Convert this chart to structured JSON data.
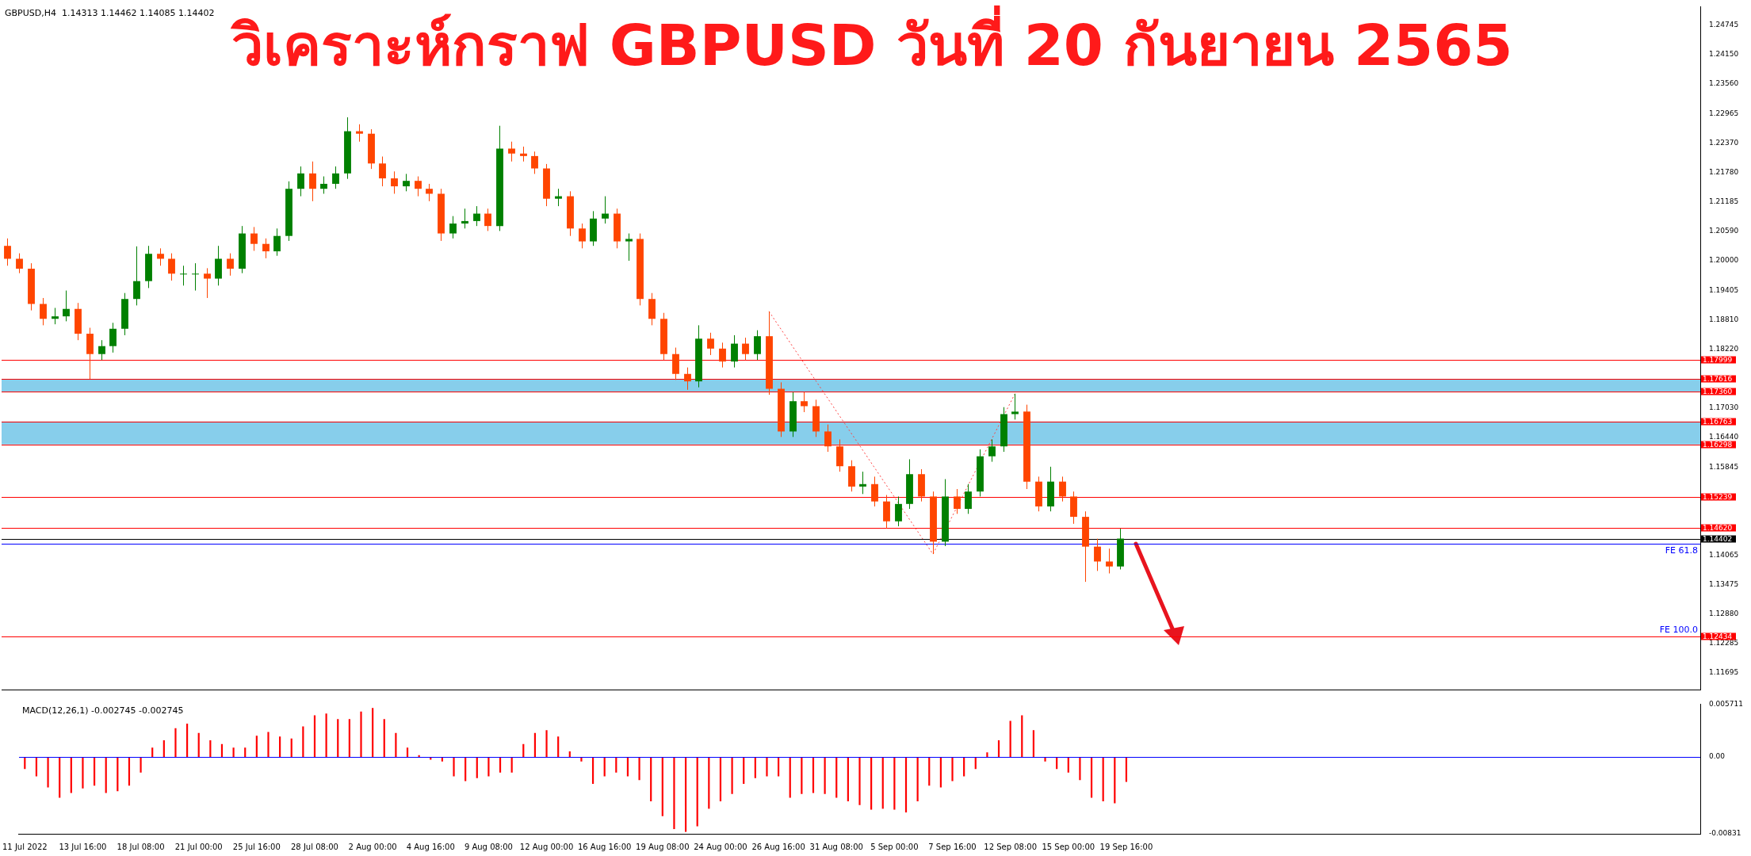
{
  "chart_data": [
    {
      "type": "candlestick",
      "title": "วิเคราะห์กราฟ GBPUSD วันที่ 20 กันยายน 2565",
      "annotations": [
        "GBPUSD,H4  1.14313 1.14462 1.14085 1.14402",
        {
          "text": "FE 100.0",
          "y": 1.12434
        }
      ],
      "categories": [
        null,
        null,
        null,
        null,
        null,
        null,
        null,
        null,
        null,
        null,
        null,
        null,
        null,
        null,
        null,
        null,
        null,
        null,
        null,
        null,
        null,
        null,
        null,
        null,
        null,
        null,
        null,
        null,
        null,
        null,
        null,
        null,
        null,
        null,
        null,
        null,
        null,
        null,
        null,
        null,
        null,
        null,
        null,
        null,
        null,
        null,
        null,
        null,
        null,
        null,
        null,
        null,
        null,
        null,
        null,
        null,
        null,
        null,
        null,
        null,
        null,
        null,
        null,
        null,
        null,
        null,
        null,
        null,
        null,
        null,
        null,
        null,
        null,
        null,
        null,
        null,
        null,
        null,
        null,
        null,
        null,
        null,
        null,
        null,
        null,
        null,
        null,
        null,
        null,
        null,
        null,
        null,
        null,
        null,
        null,
        null,
        null,
        null,
        null,
        null,
        null,
        null,
        null,
        null,
        null,
        null,
        null,
        null,
        null,
        null,
        null,
        null,
        null,
        null,
        null,
        null,
        null,
        null,
        null,
        null,
        null,
        null,
        null,
        null,
        null,
        null,
        null,
        null,
        null,
        null,
        null,
        null,
        null,
        null,
        null,
        null,
        null,
        null,
        null,
        null,
        null,
        null,
        null,
        null,
        null
      ],
      "ohlc": [
        [
          1.203,
          1.2045,
          1.199,
          1.2004
        ],
        [
          1.2004,
          1.2015,
          1.1975,
          1.1984
        ],
        [
          1.1984,
          1.1995,
          1.19,
          1.1913
        ],
        [
          1.1913,
          1.1925,
          1.187,
          1.1883
        ],
        [
          1.1883,
          1.1905,
          1.1872,
          1.1888
        ],
        [
          1.1888,
          1.194,
          1.1878,
          1.1903
        ],
        [
          1.1903,
          1.1915,
          1.184,
          1.1853
        ],
        [
          1.1853,
          1.1865,
          1.1762,
          1.1812
        ],
        [
          1.1812,
          1.184,
          1.18,
          1.1828
        ],
        [
          1.1828,
          1.1875,
          1.1815,
          1.1863
        ],
        [
          1.1863,
          1.1935,
          1.185,
          1.1923
        ],
        [
          1.1923,
          1.2029,
          1.191,
          1.1959
        ],
        [
          1.1959,
          1.203,
          1.1945,
          1.2014
        ],
        [
          1.2014,
          1.2025,
          1.199,
          1.2004
        ],
        [
          1.2004,
          1.2015,
          1.196,
          1.1974
        ],
        [
          1.1974,
          1.199,
          1.195,
          1.1974
        ],
        [
          1.1974,
          1.1995,
          1.194,
          1.1974
        ],
        [
          1.1974,
          1.1985,
          1.1925,
          1.1964
        ],
        [
          1.1964,
          1.203,
          1.195,
          1.2004
        ],
        [
          1.2004,
          1.2015,
          1.197,
          1.1984
        ],
        [
          1.1984,
          1.207,
          1.1975,
          1.2055
        ],
        [
          1.2055,
          1.2068,
          1.202,
          1.2034
        ],
        [
          1.2034,
          1.2045,
          1.2005,
          1.2019
        ],
        [
          1.2019,
          1.2065,
          1.201,
          1.205
        ],
        [
          1.205,
          1.216,
          1.204,
          1.2145
        ],
        [
          1.2145,
          1.219,
          1.213,
          1.2176
        ],
        [
          1.2176,
          1.22,
          1.212,
          1.2145
        ],
        [
          1.2145,
          1.217,
          1.2135,
          1.2155
        ],
        [
          1.2155,
          1.219,
          1.2145,
          1.2176
        ],
        [
          1.2176,
          1.2289,
          1.2165,
          1.2261
        ],
        [
          1.2261,
          1.2275,
          1.224,
          1.2256
        ],
        [
          1.2256,
          1.2265,
          1.2185,
          1.2196
        ],
        [
          1.2196,
          1.221,
          1.215,
          1.2166
        ],
        [
          1.2166,
          1.218,
          1.2135,
          1.215
        ],
        [
          1.215,
          1.2175,
          1.214,
          1.2161
        ],
        [
          1.2161,
          1.217,
          1.213,
          1.2145
        ],
        [
          1.2145,
          1.2155,
          1.212,
          1.2135
        ],
        [
          1.2135,
          1.2145,
          1.204,
          1.2055
        ],
        [
          1.2055,
          1.209,
          1.2045,
          1.2075
        ],
        [
          1.2075,
          1.2105,
          1.2065,
          1.208
        ],
        [
          1.208,
          1.211,
          1.207,
          1.2095
        ],
        [
          1.2095,
          1.2105,
          1.206,
          1.207
        ],
        [
          1.207,
          1.2272,
          1.206,
          1.2226
        ],
        [
          1.2226,
          1.224,
          1.22,
          1.2216
        ],
        [
          1.2216,
          1.223,
          1.22,
          1.2211
        ],
        [
          1.2211,
          1.222,
          1.2175,
          1.2186
        ],
        [
          1.2186,
          1.2195,
          1.211,
          1.2125
        ],
        [
          1.2125,
          1.2145,
          1.211,
          1.213
        ],
        [
          1.213,
          1.214,
          1.205,
          1.2065
        ],
        [
          1.2065,
          1.2075,
          1.2025,
          1.2039
        ],
        [
          1.2039,
          1.21,
          1.203,
          1.2085
        ],
        [
          1.2085,
          1.213,
          1.2075,
          1.2095
        ],
        [
          1.2095,
          1.2105,
          1.2025,
          1.2039
        ],
        [
          1.2039,
          1.2055,
          1.2,
          1.2044
        ],
        [
          1.2044,
          1.2055,
          1.191,
          1.1923
        ],
        [
          1.1923,
          1.1935,
          1.187,
          1.1883
        ],
        [
          1.1883,
          1.1895,
          1.18,
          1.1812
        ],
        [
          1.1812,
          1.1825,
          1.176,
          1.1772
        ],
        [
          1.1772,
          1.1785,
          1.174,
          1.1757
        ],
        [
          1.1757,
          1.187,
          1.1745,
          1.1843
        ],
        [
          1.1843,
          1.1855,
          1.181,
          1.1823
        ],
        [
          1.1823,
          1.1835,
          1.1785,
          1.1797
        ],
        [
          1.1797,
          1.185,
          1.1785,
          1.1833
        ],
        [
          1.1833,
          1.1845,
          1.18,
          1.1812
        ],
        [
          1.1812,
          1.186,
          1.18,
          1.1848
        ],
        [
          1.1848,
          1.1898,
          1.173,
          1.1742
        ],
        [
          1.1742,
          1.1755,
          1.1645,
          1.1656
        ],
        [
          1.1656,
          1.1735,
          1.1645,
          1.1717
        ],
        [
          1.1717,
          1.1735,
          1.1695,
          1.1707
        ],
        [
          1.1707,
          1.172,
          1.1645,
          1.1656
        ],
        [
          1.1656,
          1.167,
          1.1615,
          1.1626
        ],
        [
          1.1626,
          1.164,
          1.1575,
          1.1586
        ],
        [
          1.1586,
          1.1598,
          1.1535,
          1.1545
        ],
        [
          1.1545,
          1.1575,
          1.153,
          1.155
        ],
        [
          1.155,
          1.1565,
          1.1505,
          1.1515
        ],
        [
          1.1515,
          1.1528,
          1.146,
          1.1475
        ],
        [
          1.1475,
          1.1525,
          1.1465,
          1.151
        ],
        [
          1.151,
          1.16,
          1.15,
          1.157
        ],
        [
          1.157,
          1.158,
          1.1515,
          1.1525
        ],
        [
          1.1525,
          1.1535,
          1.1409,
          1.1434
        ],
        [
          1.1434,
          1.156,
          1.1425,
          1.1525
        ],
        [
          1.1525,
          1.154,
          1.149,
          1.15
        ],
        [
          1.15,
          1.155,
          1.149,
          1.1535
        ],
        [
          1.1535,
          1.162,
          1.1525,
          1.1606
        ],
        [
          1.1606,
          1.164,
          1.1595,
          1.1626
        ],
        [
          1.1626,
          1.1705,
          1.1615,
          1.1691
        ],
        [
          1.1691,
          1.1732,
          1.168,
          1.1696
        ],
        [
          1.1696,
          1.171,
          1.154,
          1.1555
        ],
        [
          1.1555,
          1.1565,
          1.1495,
          1.1505
        ],
        [
          1.1505,
          1.1585,
          1.1495,
          1.1555
        ],
        [
          1.1555,
          1.1565,
          1.1515,
          1.1525
        ],
        [
          1.1525,
          1.1535,
          1.147,
          1.1484
        ],
        [
          1.1484,
          1.1495,
          1.1353,
          1.1424
        ],
        [
          1.1424,
          1.144,
          1.1375,
          1.1394
        ],
        [
          1.1394,
          1.142,
          1.137,
          1.1384
        ],
        [
          1.1384,
          1.146,
          1.1378,
          1.14402
        ],
        null,
        null,
        null,
        null,
        null,
        null,
        null,
        null,
        null,
        null,
        null,
        null,
        null,
        null,
        null,
        null,
        null,
        null,
        null,
        null,
        null,
        null,
        null,
        null,
        null,
        null,
        null,
        null,
        null,
        null,
        null,
        null,
        null,
        null,
        null,
        null,
        null,
        null,
        null,
        null,
        null,
        null,
        null,
        null,
        null,
        null,
        null,
        null,
        null
      ],
      "series": [
        {
          "type": "line",
          "color": "#ff4040",
          "line_style": "dotted",
          "values": [
            null,
            null,
            null,
            null,
            null,
            null,
            null,
            null,
            null,
            null,
            null,
            null,
            null,
            null,
            null,
            null,
            null,
            null,
            null,
            null,
            null,
            null,
            null,
            null,
            null,
            null,
            null,
            null,
            null,
            null,
            null,
            null,
            null,
            null,
            null,
            null,
            null,
            null,
            null,
            null,
            null,
            null,
            null,
            null,
            null,
            null,
            null,
            null,
            null,
            null,
            null,
            null,
            null,
            null,
            null,
            null,
            null,
            null,
            null,
            null,
            null,
            null,
            null,
            null,
            null,
            1.1898,
            null,
            null,
            null,
            null,
            null,
            null,
            null,
            null,
            null,
            null,
            null,
            null,
            null,
            1.1409,
            null,
            null,
            null,
            null,
            null,
            null,
            1.1732,
            null,
            null,
            null,
            null,
            null,
            null,
            null,
            null,
            null,
            null,
            null,
            null,
            null,
            null,
            null,
            null,
            null,
            null,
            null,
            null,
            null,
            null,
            null,
            null,
            null,
            null,
            null,
            null,
            null,
            null,
            null,
            null,
            null,
            null,
            null,
            null,
            null,
            null,
            null,
            null,
            null,
            null,
            null,
            null,
            null,
            null,
            null,
            null,
            null,
            null,
            null,
            null,
            null,
            null,
            null,
            null,
            null,
            null
          ]
        }
      ],
      "ylim": [
        1.1136,
        1.2512
      ],
      "yticks": [
        {
          "value": 1.24745,
          "label": "1.24745"
        },
        {
          "value": 1.2415,
          "label": "1.24150"
        },
        {
          "value": 1.2356,
          "label": "1.23560"
        },
        {
          "value": 1.22965,
          "label": "1.22965"
        },
        {
          "value": 1.2237,
          "label": "1.22370"
        },
        {
          "value": 1.2178,
          "label": "1.21780"
        },
        {
          "value": 1.21185,
          "label": "1.21185"
        },
        {
          "value": 1.2059,
          "label": "1.20590"
        },
        {
          "value": 1.2,
          "label": "1.20000"
        },
        {
          "value": 1.19405,
          "label": "1.19405"
        },
        {
          "value": 1.1881,
          "label": "1.18810"
        },
        {
          "value": 1.1822,
          "label": "1.18220"
        },
        {
          "value": 1.1703,
          "label": "1.17030"
        },
        {
          "value": 1.1644,
          "label": "1.16440"
        },
        {
          "value": 1.15845,
          "label": "1.15845"
        },
        {
          "value": 1.14065,
          "label": "1.14065"
        },
        {
          "value": 1.13475,
          "label": "1.13475"
        },
        {
          "value": 1.1288,
          "label": "1.12880"
        },
        {
          "value": 1.12285,
          "label": "1.12285"
        },
        {
          "value": 1.11695,
          "label": "1.11695"
        }
      ],
      "bands": [
        {
          "axis": "y",
          "from": 1.1736,
          "to": 1.17616,
          "color": "#87ceeb"
        },
        {
          "axis": "y",
          "from": 1.16298,
          "to": 1.16763,
          "color": "#87ceeb"
        }
      ],
      "ref_lines": [
        {
          "axis": "y",
          "value": 1.17999,
          "label": "1.17999",
          "color": "#ff0000"
        },
        {
          "axis": "y",
          "value": 1.17616,
          "label": "1.17616",
          "color": "#ff0000"
        },
        {
          "axis": "y",
          "value": 1.1736,
          "label": "1.17360",
          "color": "#ff0000"
        },
        {
          "axis": "y",
          "value": 1.16763,
          "label": "1.16763",
          "color": "#ff0000"
        },
        {
          "axis": "y",
          "value": 1.16298,
          "label": "1.16298",
          "color": "#ff0000"
        },
        {
          "axis": "y",
          "value": 1.15239,
          "label": "1.15239",
          "color": "#ff0000"
        },
        {
          "axis": "y",
          "value": 1.1462,
          "label": "1.14620",
          "color": "#ff0000"
        },
        {
          "axis": "y",
          "value": 1.14402,
          "label": "1.14402",
          "color": "#000000"
        },
        {
          "axis": "y",
          "value": 1.143,
          "label": "FE 61.8",
          "color": "#0000ff"
        },
        {
          "axis": "y",
          "value": 1.12434,
          "label": "1.12434",
          "color": "#ff0000"
        }
      ],
      "legend": false,
      "grid": false,
      "tick_labels": "y"
    },
    {
      "type": "bar",
      "annotations": [
        "MACD(12,26,1) -0.002745 -0.002745"
      ],
      "categories": [
        "11 Jul 2022",
        null,
        null,
        null,
        null,
        "13 Jul 16:00",
        null,
        null,
        null,
        null,
        "18 Jul 08:00",
        null,
        null,
        null,
        null,
        "21 Jul 00:00",
        null,
        null,
        null,
        null,
        "25 Jul 16:00",
        null,
        null,
        null,
        null,
        "28 Jul 08:00",
        null,
        null,
        null,
        null,
        "2 Aug 00:00",
        null,
        null,
        null,
        null,
        "4 Aug 16:00",
        null,
        null,
        null,
        null,
        "9 Aug 08:00",
        null,
        null,
        null,
        null,
        "12 Aug 00:00",
        null,
        null,
        null,
        null,
        "16 Aug 16:00",
        null,
        null,
        null,
        null,
        "19 Aug 08:00",
        null,
        null,
        null,
        null,
        "24 Aug 00:00",
        null,
        null,
        null,
        null,
        "26 Aug 16:00",
        null,
        null,
        null,
        null,
        "31 Aug 08:00",
        null,
        null,
        null,
        null,
        "5 Sep 00:00",
        null,
        null,
        null,
        null,
        "7 Sep 16:00",
        null,
        null,
        null,
        null,
        "12 Sep 08:00",
        null,
        null,
        null,
        null,
        "15 Sep 00:00",
        null,
        null,
        null,
        null,
        "19 Sep 16:00",
        null,
        null,
        null,
        null,
        null,
        null,
        null,
        null,
        null,
        null,
        null,
        null,
        null,
        null,
        null,
        null,
        null,
        null,
        null,
        null,
        null,
        null,
        null,
        null,
        null,
        null,
        null,
        null,
        null,
        null,
        null,
        null,
        null,
        null,
        null,
        null,
        null,
        null,
        null,
        null,
        null,
        null,
        null,
        null,
        null,
        null,
        null,
        null,
        null
      ],
      "values": [
        -0.0013,
        -0.0021,
        -0.0033,
        -0.0044,
        -0.0039,
        -0.0034,
        -0.0031,
        -0.0039,
        -0.0037,
        -0.0031,
        -0.0017,
        0.001,
        0.0018,
        0.0031,
        0.0036,
        0.0026,
        0.0018,
        0.0014,
        0.001,
        0.001,
        0.0023,
        0.0027,
        0.0022,
        0.002,
        0.0033,
        0.0045,
        0.0047,
        0.0041,
        0.0041,
        0.0049,
        0.0053,
        0.0041,
        0.0026,
        0.001,
        0.0002,
        -0.0003,
        -0.0005,
        -0.0021,
        -0.0026,
        -0.0023,
        -0.0021,
        -0.0017,
        -0.0017,
        0.0014,
        0.0026,
        0.0029,
        0.0022,
        0.0006,
        -0.0005,
        -0.0029,
        -0.0021,
        -0.0017,
        -0.0021,
        -0.0025,
        -0.0048,
        -0.0064,
        -0.0078,
        -0.0081,
        -0.0075,
        -0.0056,
        -0.0048,
        -0.004,
        -0.0029,
        -0.0023,
        -0.0021,
        -0.0021,
        -0.0044,
        -0.004,
        -0.0039,
        -0.004,
        -0.0044,
        -0.0048,
        -0.0052,
        -0.0057,
        -0.0056,
        -0.0057,
        -0.006,
        -0.0048,
        -0.0031,
        -0.0033,
        -0.0026,
        -0.0021,
        -0.0013,
        0.0005,
        0.0018,
        0.0039,
        0.0045,
        0.0029,
        -0.0005,
        -0.0013,
        -0.0017,
        -0.0025,
        -0.0044,
        -0.0048,
        -0.005,
        -0.0027,
        null,
        null,
        null,
        null,
        null,
        null,
        null,
        null,
        null,
        null,
        null,
        null,
        null,
        null,
        null,
        null,
        null,
        null,
        null,
        null,
        null,
        null,
        null,
        null,
        null,
        null,
        null,
        null,
        null,
        null,
        null,
        null,
        null,
        null,
        null,
        null,
        null,
        null,
        null,
        null,
        null,
        null,
        null,
        null,
        null,
        null,
        null,
        null,
        null
      ],
      "color": "#ff0000",
      "ylim": [
        -0.00831,
        0.005711
      ],
      "yticks": [
        {
          "value": 0.005711,
          "label": "0.005711"
        },
        {
          "value": 0,
          "label": "0.00"
        },
        {
          "value": -0.00831,
          "label": "-0.00831"
        }
      ],
      "ref_lines": [
        {
          "axis": "y",
          "value": 0,
          "color": "#0000ff"
        }
      ],
      "legend": false,
      "grid": false
    }
  ]
}
